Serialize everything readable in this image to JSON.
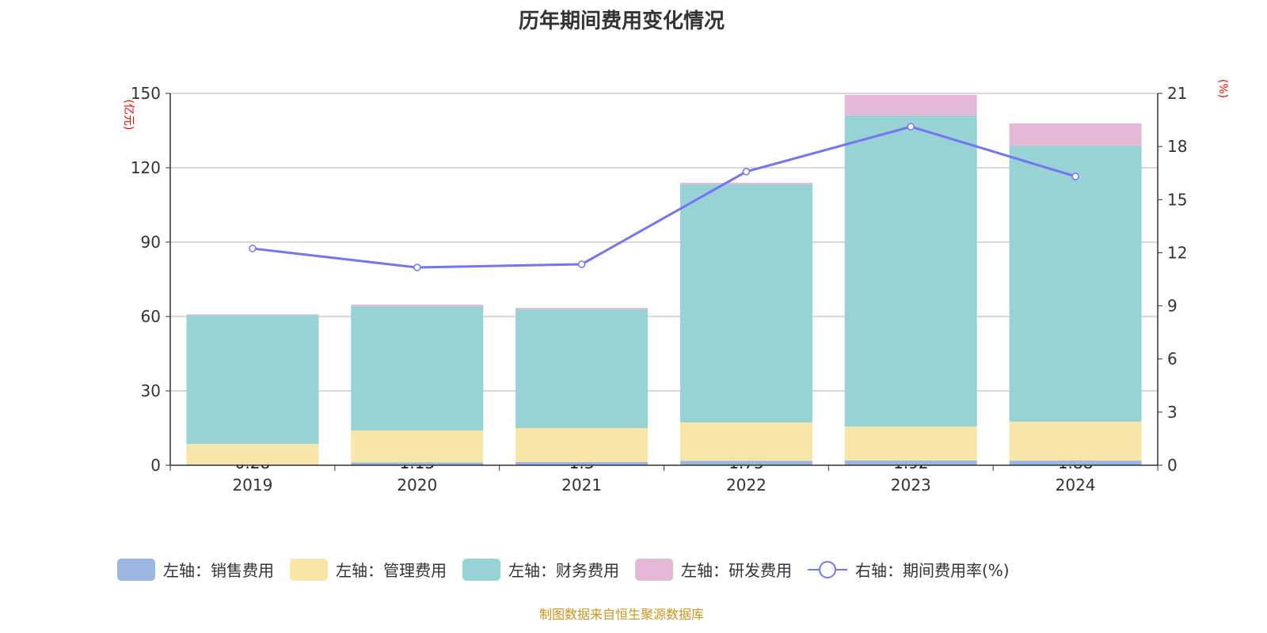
{
  "chart_data": {
    "type": "bar",
    "title": "历年期间费用变化情况",
    "categories": [
      "2019",
      "2020",
      "2021",
      "2022",
      "2023",
      "2024"
    ],
    "left_axis": {
      "unit": "(亿元)",
      "range": [
        0,
        150
      ],
      "ticks": [
        0,
        30,
        60,
        90,
        120,
        150
      ]
    },
    "right_axis": {
      "unit": "(%)",
      "range": [
        0,
        21
      ],
      "ticks": [
        0,
        3,
        6,
        9,
        12,
        15,
        18,
        21
      ]
    },
    "grid": true,
    "legend_position": "bottom",
    "series": [
      {
        "name": "左轴：销售费用",
        "type": "bar",
        "axis": "left",
        "color": "#9bb6e0",
        "values": [
          0.28,
          1.13,
          1.3,
          1.75,
          1.92,
          1.88
        ],
        "labels": [
          "0.28",
          "1.13",
          "1.3",
          "1.75",
          "1.92",
          "1.88"
        ]
      },
      {
        "name": "左轴：管理费用",
        "type": "bar",
        "axis": "left",
        "color": "#f8e6a8",
        "values": [
          8.3,
          12.9,
          13.7,
          15.5,
          13.7,
          15.7
        ]
      },
      {
        "name": "左轴：财务费用",
        "type": "bar",
        "axis": "left",
        "color": "#97d3d4",
        "values": [
          52.0,
          50.2,
          47.9,
          96.1,
          125.5,
          111.4
        ]
      },
      {
        "name": "左轴：研发费用",
        "type": "bar",
        "axis": "left",
        "color": "#e6b8d8",
        "values": [
          0.3,
          0.6,
          0.6,
          0.6,
          8.3,
          8.9
        ]
      },
      {
        "name": "右轴：期间费用率(%)",
        "type": "line",
        "axis": "right",
        "color": "#7474f5",
        "values": [
          12.24,
          11.17,
          11.35,
          16.58,
          19.12,
          16.31
        ]
      }
    ]
  },
  "footer": "制图数据来自恒生聚源数据库"
}
